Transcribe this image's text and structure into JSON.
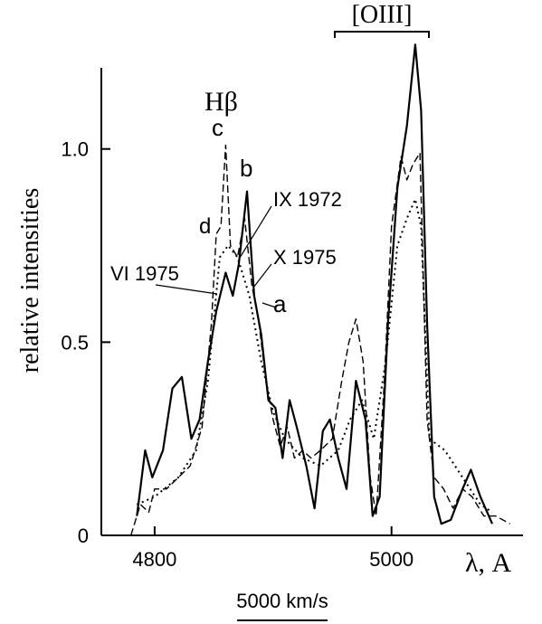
{
  "chart_data": {
    "type": "line",
    "ylabel": "relative intensities",
    "xlabel": "λ, A",
    "xlim": [
      4755,
      5111
    ],
    "ylim": [
      0,
      1.21
    ],
    "xticks": [
      4800,
      5000
    ],
    "yticks": [
      0,
      0.5,
      {
        "value": 1,
        "label": "1.0"
      }
    ],
    "line_title": "Hβ",
    "bracket_label": "[OIII]",
    "scale_bar_label": "5000 km/s",
    "annotations": [
      "c",
      "b",
      "d",
      "IX 1972",
      "X 1975",
      "VI 1975",
      "a"
    ],
    "series": [
      {
        "color": "#000",
        "style": "solid",
        "x": [
          4785,
          4792,
          4798,
          4807,
          4815,
          4823,
          4831,
          4838,
          4845,
          4852,
          4860,
          4866,
          4871,
          4878,
          4884,
          4890,
          4896,
          4902,
          4908,
          4914,
          4920,
          4928,
          4935,
          4942,
          4948,
          4955,
          4962,
          4970,
          4978,
          4984,
          4990,
          4997,
          5005,
          5013,
          5020,
          5025,
          5030,
          5036,
          5042,
          5050,
          5060,
          5067,
          5075,
          5085
        ],
        "values": [
          0.05,
          0.22,
          0.15,
          0.22,
          0.38,
          0.41,
          0.25,
          0.3,
          0.45,
          0.58,
          0.68,
          0.62,
          0.7,
          0.89,
          0.62,
          0.52,
          0.35,
          0.33,
          0.2,
          0.35,
          0.28,
          0.18,
          0.07,
          0.27,
          0.3,
          0.2,
          0.12,
          0.4,
          0.3,
          0.05,
          0.1,
          0.55,
          0.9,
          1.06,
          1.27,
          1.1,
          0.55,
          0.1,
          0.03,
          0.04,
          0.12,
          0.17,
          0.1,
          0.03
        ]
      },
      {
        "color": "#000",
        "style": "dashed",
        "x": [
          4780,
          4788,
          4795,
          4800,
          4810,
          4820,
          4830,
          4840,
          4848,
          4852,
          4856,
          4860,
          4864,
          4870,
          4876,
          4882,
          4888,
          4894,
          4900,
          4906,
          4912,
          4918,
          4925,
          4932,
          4940,
          4950,
          4958,
          4964,
          4970,
          4976,
          4982,
          4987,
          4994,
          5000,
          5008,
          5013,
          5018,
          5024,
          5030,
          5036,
          5044,
          5052,
          5060,
          5068,
          5078,
          5088,
          5100
        ],
        "values": [
          0.0,
          0.08,
          0.06,
          0.12,
          0.12,
          0.15,
          0.18,
          0.28,
          0.55,
          0.78,
          0.8,
          1.01,
          0.75,
          0.72,
          0.82,
          0.65,
          0.55,
          0.4,
          0.3,
          0.23,
          0.28,
          0.2,
          0.22,
          0.2,
          0.22,
          0.25,
          0.4,
          0.5,
          0.56,
          0.45,
          0.15,
          0.05,
          0.4,
          0.8,
          0.98,
          0.92,
          0.96,
          0.99,
          0.3,
          0.15,
          0.12,
          0.07,
          0.12,
          0.1,
          0.05,
          0.05,
          0.03
        ]
      },
      {
        "color": "#000",
        "style": "dotted",
        "x": [
          4785,
          4800,
          4820,
          4835,
          4845,
          4855,
          4862,
          4870,
          4880,
          4890,
          4900,
          4910,
          4925,
          4940,
          4955,
          4965,
          4975,
          4985,
          4995,
          5005,
          5013,
          5020,
          5025,
          5032,
          5045,
          5060,
          5075,
          5085
        ],
        "values": [
          0.08,
          0.1,
          0.15,
          0.22,
          0.4,
          0.72,
          0.75,
          0.72,
          0.62,
          0.45,
          0.32,
          0.25,
          0.2,
          0.18,
          0.22,
          0.3,
          0.35,
          0.25,
          0.45,
          0.75,
          0.82,
          0.87,
          0.8,
          0.25,
          0.22,
          0.15,
          0.08,
          0.06
        ]
      }
    ]
  }
}
